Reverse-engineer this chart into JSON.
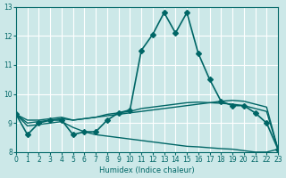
{
  "xlabel": "Humidex (Indice chaleur)",
  "bg_color": "#cce8e8",
  "grid_color": "#ffffff",
  "line_color": "#006666",
  "xlim": [
    0,
    23
  ],
  "ylim": [
    8,
    13
  ],
  "xticks": [
    0,
    1,
    2,
    3,
    4,
    5,
    6,
    7,
    8,
    9,
    10,
    11,
    12,
    13,
    14,
    15,
    16,
    17,
    18,
    19,
    20,
    21,
    22,
    23
  ],
  "yticks": [
    8,
    9,
    10,
    11,
    12,
    13
  ],
  "curves": [
    {
      "x": [
        0,
        1,
        2,
        3,
        4,
        5,
        6,
        7,
        8,
        9,
        10,
        11,
        12,
        13,
        14,
        15,
        16,
        17,
        18,
        19,
        20,
        21,
        22,
        23
      ],
      "y": [
        9.3,
        8.6,
        9.0,
        9.1,
        9.1,
        8.6,
        8.7,
        8.7,
        9.1,
        9.35,
        9.45,
        11.5,
        12.05,
        12.8,
        12.1,
        12.8,
        11.4,
        10.5,
        9.75,
        9.6,
        9.6,
        9.35,
        9.0,
        8.1
      ],
      "marker": "D",
      "marker_size": 3,
      "linewidth": 1.2
    },
    {
      "x": [
        0,
        1,
        2,
        3,
        4,
        5,
        6,
        7,
        8,
        9,
        10,
        11,
        12,
        13,
        14,
        15,
        16,
        17,
        18,
        19,
        20,
        21,
        22,
        23
      ],
      "y": [
        9.3,
        9.0,
        9.05,
        9.1,
        9.15,
        9.1,
        9.15,
        9.2,
        9.25,
        9.3,
        9.35,
        9.4,
        9.45,
        9.5,
        9.55,
        9.6,
        9.65,
        9.7,
        9.75,
        9.78,
        9.75,
        9.65,
        9.55,
        8.1
      ],
      "marker": null,
      "marker_size": 0,
      "linewidth": 1.0
    },
    {
      "x": [
        0,
        1,
        2,
        3,
        4,
        5,
        6,
        7,
        8,
        9,
        10,
        11,
        12,
        13,
        14,
        15,
        16,
        17,
        18,
        19,
        20,
        21,
        22,
        23
      ],
      "y": [
        9.3,
        9.1,
        9.1,
        9.15,
        9.2,
        9.1,
        9.15,
        9.2,
        9.3,
        9.35,
        9.4,
        9.5,
        9.55,
        9.6,
        9.65,
        9.7,
        9.72,
        9.7,
        9.68,
        9.65,
        9.6,
        9.5,
        9.4,
        8.1
      ],
      "marker": null,
      "marker_size": 0,
      "linewidth": 1.0
    },
    {
      "x": [
        0,
        1,
        2,
        3,
        4,
        5,
        6,
        7,
        8,
        9,
        10,
        11,
        12,
        13,
        14,
        15,
        16,
        17,
        18,
        19,
        20,
        21,
        22,
        23
      ],
      "y": [
        9.3,
        8.9,
        8.95,
        9.0,
        9.05,
        8.85,
        8.7,
        8.6,
        8.55,
        8.5,
        8.45,
        8.4,
        8.35,
        8.3,
        8.25,
        8.2,
        8.18,
        8.15,
        8.12,
        8.1,
        8.05,
        8.0,
        8.0,
        8.1
      ],
      "marker": null,
      "marker_size": 0,
      "linewidth": 1.0
    }
  ]
}
